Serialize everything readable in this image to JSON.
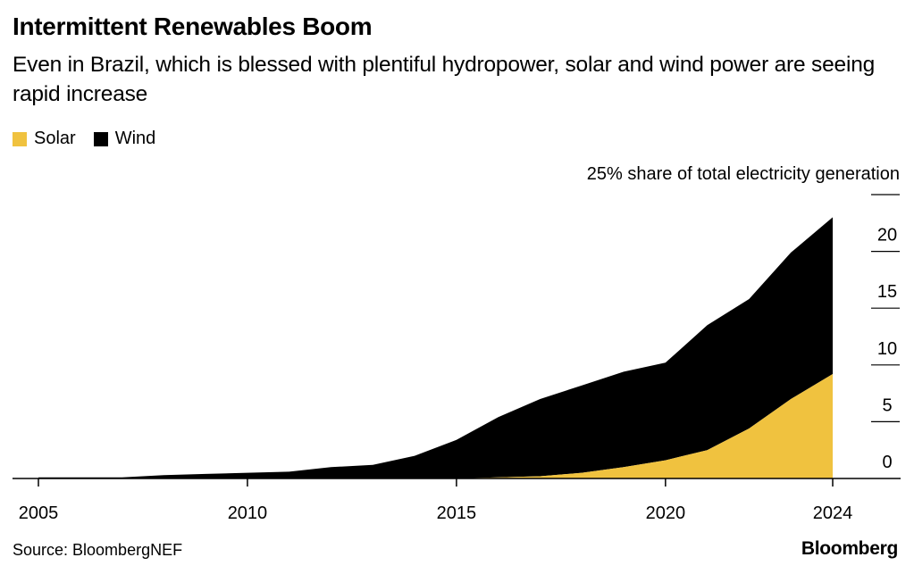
{
  "header": {
    "title": "Intermittent Renewables Boom",
    "subtitle": "Even in Brazil, which is blessed with plentiful hydropower, solar and wind power are seeing rapid increase"
  },
  "footer": {
    "source": "Source: BloombergNEF",
    "brand": "Bloomberg"
  },
  "colors": {
    "solar": "#f0c23f",
    "wind": "#000000",
    "axis": "#000000"
  },
  "chart_data": {
    "type": "area",
    "stacked": true,
    "title": "Intermittent Renewables Boom",
    "y_axis_title": "25% share of total electricity generation",
    "x": [
      2005,
      2006,
      2007,
      2008,
      2009,
      2010,
      2011,
      2012,
      2013,
      2014,
      2015,
      2016,
      2017,
      2018,
      2019,
      2020,
      2021,
      2022,
      2023,
      2024
    ],
    "series": [
      {
        "name": "Solar",
        "values": [
          0,
          0,
          0,
          0,
          0,
          0,
          0,
          0,
          0,
          0,
          0,
          0.1,
          0.2,
          0.5,
          1.0,
          1.6,
          2.5,
          4.4,
          7.0,
          9.2
        ]
      },
      {
        "name": "Wind",
        "values": [
          0.1,
          0.1,
          0.1,
          0.3,
          0.4,
          0.5,
          0.6,
          1.0,
          1.2,
          2.0,
          3.4,
          5.3,
          6.8,
          7.7,
          8.4,
          8.6,
          11.0,
          11.4,
          12.9,
          13.8
        ]
      }
    ],
    "x_ticks": [
      2005,
      2010,
      2015,
      2020,
      2024
    ],
    "y_ticks": [
      0,
      5,
      10,
      15,
      20,
      25
    ],
    "y_tick_labels": [
      "0",
      "5",
      "10",
      "15",
      "20",
      ""
    ],
    "xlim": [
      2005,
      2024
    ],
    "ylim": [
      0,
      25
    ],
    "legend_position": "top-left",
    "y_axis_position": "right",
    "grid": false
  }
}
